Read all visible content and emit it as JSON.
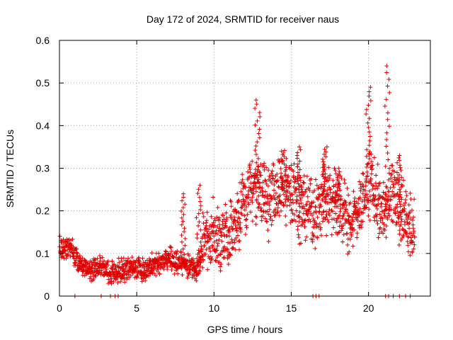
{
  "chart_data": {
    "type": "scatter",
    "title": "Day 172 of 2024, SRMTID for receiver naus",
    "xlabel": "GPS time / hours",
    "ylabel": "SRMTID / TECUs",
    "xlim": [
      0,
      24
    ],
    "ylim": [
      0,
      0.6
    ],
    "x_ticks": [
      "0",
      "5",
      "10",
      "15",
      "20"
    ],
    "y_ticks": [
      "0",
      "0.1",
      "0.2",
      "0.3",
      "0.4",
      "0.5",
      "0.6"
    ],
    "grid": true,
    "marker": "+",
    "series_color": "#e00000",
    "series": [
      {
        "name": "SRMTID",
        "profile_x": [
          0,
          0.3,
          0.6,
          1.0,
          1.5,
          2.0,
          2.5,
          3.0,
          3.5,
          4.0,
          4.5,
          5.0,
          5.5,
          6.0,
          6.5,
          7.0,
          7.5,
          8.0,
          8.5,
          9.0,
          9.3,
          10.0,
          10.5,
          11.0,
          11.5,
          12.0,
          12.5,
          13.0,
          13.5,
          14.0,
          14.5,
          15.0,
          15.5,
          16.0,
          16.5,
          17.0,
          17.5,
          18.0,
          18.5,
          19.0,
          19.5,
          20.0,
          20.5,
          21.0,
          21.5,
          22.0,
          22.5,
          23.0
        ],
        "profile_y": [
          0.12,
          0.11,
          0.12,
          0.09,
          0.07,
          0.06,
          0.07,
          0.06,
          0.05,
          0.06,
          0.07,
          0.07,
          0.06,
          0.07,
          0.08,
          0.09,
          0.08,
          0.07,
          0.07,
          0.06,
          0.14,
          0.14,
          0.13,
          0.15,
          0.18,
          0.22,
          0.26,
          0.25,
          0.22,
          0.23,
          0.25,
          0.24,
          0.21,
          0.2,
          0.18,
          0.22,
          0.24,
          0.21,
          0.19,
          0.18,
          0.22,
          0.27,
          0.23,
          0.19,
          0.24,
          0.21,
          0.17,
          0.15
        ],
        "peaks": [
          {
            "x": 12.8,
            "y": 0.46
          },
          {
            "x": 14.5,
            "y": 0.34
          },
          {
            "x": 15.5,
            "y": 0.35
          },
          {
            "x": 17.2,
            "y": 0.35
          },
          {
            "x": 18.0,
            "y": 0.3
          },
          {
            "x": 20.0,
            "y": 0.49
          },
          {
            "x": 21.2,
            "y": 0.54
          },
          {
            "x": 22.0,
            "y": 0.33
          },
          {
            "x": 8.0,
            "y": 0.24
          },
          {
            "x": 9.0,
            "y": 0.26
          }
        ],
        "zero_values_x": [
          1.0,
          2.7,
          3.3,
          3.6,
          3.8,
          16.4,
          16.6,
          16.8,
          21.1,
          21.3,
          21.6,
          22.0,
          22.4,
          22.7
        ]
      }
    ]
  }
}
